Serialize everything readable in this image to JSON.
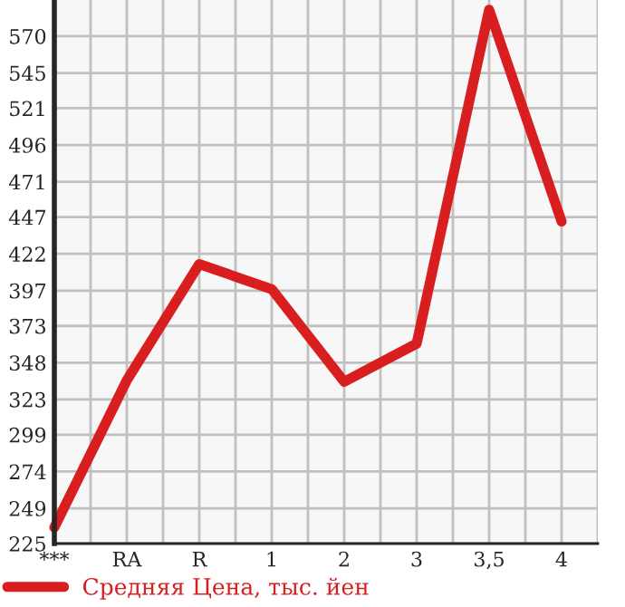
{
  "chart_data": {
    "type": "line",
    "categories": [
      "***",
      "RA",
      "R",
      "1",
      "2",
      "3",
      "3,5",
      "4"
    ],
    "series": [
      {
        "name": "Средняя Цена, тыс. йен",
        "color": "#d81e1e",
        "values": [
          236,
          336,
          415,
          398,
          335,
          361,
          588,
          444
        ]
      }
    ],
    "ylim": [
      225,
      594.6
    ],
    "yticks": [
      225,
      249,
      274,
      299,
      323,
      348,
      373,
      397,
      422,
      447,
      471,
      496,
      521,
      545,
      570
    ],
    "grid": true,
    "legend": "bottom",
    "marker": "none",
    "line_style": "solid"
  }
}
